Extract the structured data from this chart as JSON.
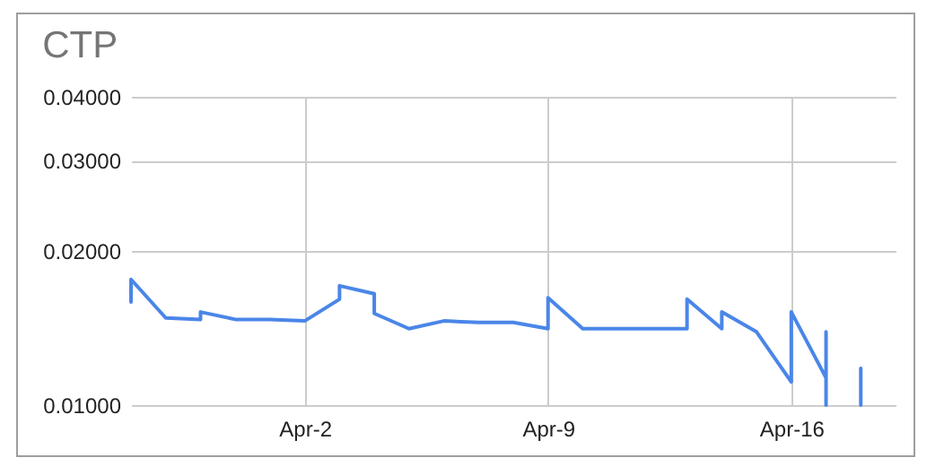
{
  "chart_data": {
    "type": "line",
    "title": "CTP",
    "x": [
      "--03-28",
      "--03-28",
      "--03-29",
      "--03-30",
      "--03-30",
      "--03-31",
      "--04-01",
      "--04-02",
      "--04-03",
      "--04-03",
      "--04-04",
      "--04-04",
      "--04-05",
      "--04-06",
      "--04-07",
      "--04-08",
      "--04-09",
      "--04-09",
      "--04-10",
      "--04-11",
      "--04-12",
      "--04-13",
      "--04-13",
      "--04-14",
      "--04-14",
      "--04-15",
      "--04-16",
      "--04-16",
      "--04-17",
      "--04-17",
      "--04-17"
    ],
    "series": [
      {
        "color": "#4a86e8",
        "values": [
          0.0159,
          0.0176,
          0.0148,
          0.0147,
          0.0152,
          0.0147,
          0.0147,
          0.0146,
          0.0161,
          0.0171,
          0.0165,
          0.0151,
          0.0141,
          0.0146,
          0.0145,
          0.0145,
          0.0141,
          0.0162,
          0.0141,
          0.0141,
          0.0141,
          0.0141,
          0.0161,
          0.0141,
          0.0152,
          0.0139,
          0.0111,
          0.0152,
          0.0113,
          0.0139,
          0.01
        ]
      },
      {
        "color": "#4a86e8",
        "x": [
          "--04-18",
          "--04-18"
        ],
        "values": [
          0.01,
          0.0118
        ]
      }
    ],
    "xlim": [
      "--03-28",
      "--04-19"
    ],
    "xticks": [
      {
        "value": "--04-02",
        "label": "Apr-2"
      },
      {
        "value": "--04-09",
        "label": "Apr-9"
      },
      {
        "value": "--04-16",
        "label": "Apr-16"
      }
    ],
    "log": true,
    "ylim": [
      0.01,
      0.04
    ],
    "yticks": [
      {
        "value": 0.01,
        "label": "0.01000"
      },
      {
        "value": 0.02,
        "label": "0.02000"
      },
      {
        "value": 0.03,
        "label": "0.03000"
      },
      {
        "value": 0.04,
        "label": "0.04000"
      }
    ],
    "grid": true,
    "legend": false,
    "marker": "none",
    "line_style": "solid"
  }
}
